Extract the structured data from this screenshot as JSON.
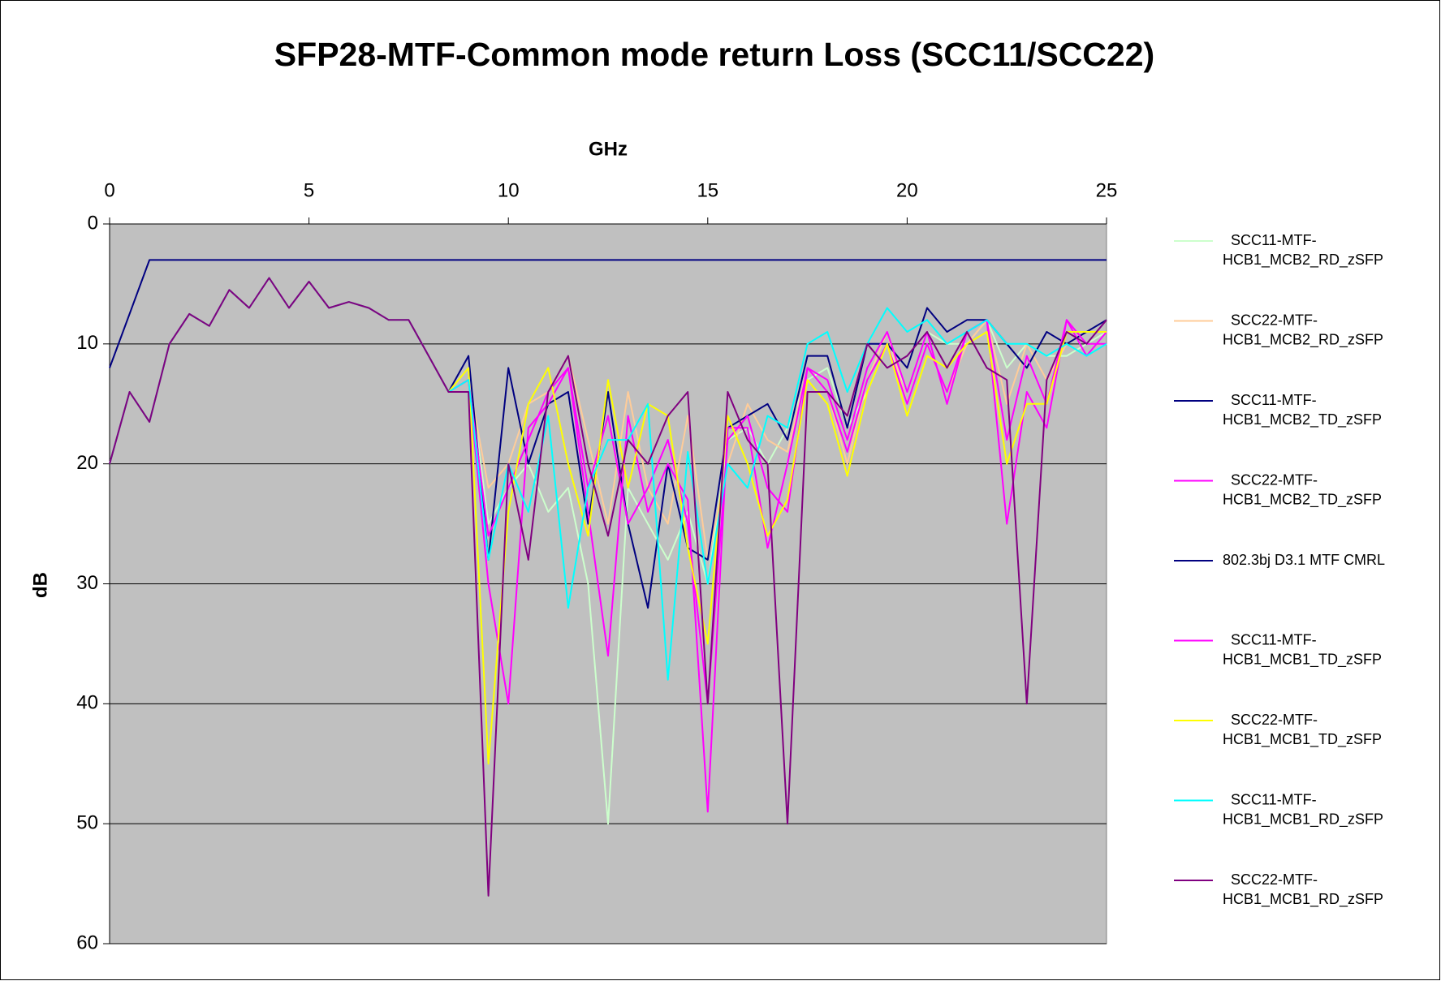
{
  "chart_data": {
    "type": "line",
    "title": "SFP28-MTF-Common mode return Loss (SCC11/SCC22)",
    "x_label": "GHz",
    "y_label": "dB",
    "x": [
      0,
      0.5,
      1,
      1.5,
      2,
      2.5,
      3,
      3.5,
      4,
      4.5,
      5,
      5.5,
      6,
      6.5,
      7,
      7.5,
      8,
      8.5,
      9,
      9.5,
      10,
      10.5,
      11,
      11.5,
      12,
      12.5,
      13,
      13.5,
      14,
      14.5,
      15,
      15.5,
      16,
      16.5,
      17,
      17.5,
      18,
      18.5,
      19,
      19.5,
      20,
      20.5,
      21,
      21.5,
      22,
      22.5,
      23,
      23.5,
      24,
      24.5,
      25
    ],
    "xlim": [
      0,
      25
    ],
    "xticks": [
      0,
      5,
      10,
      15,
      20,
      25
    ],
    "ylim": [
      0,
      60
    ],
    "yticks": [
      0,
      10,
      20,
      30,
      40,
      50,
      60
    ],
    "y_inverted": true,
    "x_axis_position": "top",
    "grid": true,
    "plot_background": "#c0c0c0",
    "legend": "right",
    "series": [
      {
        "name": "SCC11-MTF-HCB1_MCB2_RD_zSFP",
        "color": "#ccffcc",
        "values": [
          20,
          14,
          16.5,
          10,
          7.5,
          8.5,
          5.5,
          7,
          4.5,
          7,
          4.8,
          7,
          6.5,
          7,
          8,
          8,
          11,
          14,
          12,
          25,
          22,
          20,
          24,
          22,
          30,
          50,
          22,
          25,
          28,
          24,
          30,
          18,
          17,
          20,
          17,
          13,
          12,
          17,
          14,
          10,
          14,
          9,
          10,
          10,
          8,
          12,
          10,
          11,
          11,
          10,
          9
        ]
      },
      {
        "name": "SCC22-MTF-HCB1_MCB2_RD_zSFP",
        "color": "#ffcc99",
        "values": [
          20,
          14,
          16.5,
          10,
          7.5,
          8.5,
          5.5,
          7,
          4.5,
          7,
          4.8,
          7,
          6.5,
          7,
          8,
          8,
          11,
          14,
          13,
          22,
          20,
          15,
          14,
          11,
          18,
          25,
          14,
          22,
          25,
          16,
          28,
          20,
          15,
          18,
          19,
          12,
          14,
          20,
          13,
          9,
          15,
          10,
          14,
          10,
          8,
          15,
          10,
          13,
          10,
          9,
          9
        ]
      },
      {
        "name": "SCC11-MTF-HCB1_MCB2_TD_zSFP",
        "color": "#000080",
        "values": [
          20,
          14,
          16.5,
          10,
          7.5,
          8.5,
          5.5,
          7,
          4.5,
          7,
          4.8,
          7,
          6.5,
          7,
          8,
          8,
          11,
          14,
          11,
          28,
          12,
          20,
          15,
          14,
          25,
          14,
          25,
          32,
          20,
          27,
          28,
          17,
          16,
          15,
          18,
          11,
          11,
          17,
          10,
          10,
          12,
          7,
          9,
          8,
          8,
          10,
          12,
          9,
          10,
          9,
          8
        ]
      },
      {
        "name": "SCC22-MTF-HCB1_MCB2_TD_zSFP",
        "color": "#ff00ff",
        "values": [
          20,
          14,
          16.5,
          10,
          7.5,
          8.5,
          5.5,
          7,
          4.5,
          7,
          4.8,
          7,
          6.5,
          7,
          8,
          8,
          11,
          14,
          13,
          26,
          22,
          18,
          14,
          12,
          22,
          16,
          25,
          22,
          18,
          25,
          40,
          18,
          16,
          22,
          24,
          12,
          13,
          18,
          12,
          9,
          14,
          9,
          15,
          9,
          8,
          18,
          11,
          15,
          8,
          10,
          10
        ]
      },
      {
        "name": "802.3bj D3.1 MTF CMRL",
        "color": "#000080",
        "values": [
          12,
          7.5,
          3,
          3,
          3,
          3,
          3,
          3,
          3,
          3,
          3,
          3,
          3,
          3,
          3,
          3,
          3,
          3,
          3,
          3,
          3,
          3,
          3,
          3,
          3,
          3,
          3,
          3,
          3,
          3,
          3,
          3,
          3,
          3,
          3,
          3,
          3,
          3,
          3,
          3,
          3,
          3,
          3,
          3,
          3,
          3,
          3,
          3,
          3,
          3,
          3
        ]
      },
      {
        "name": "SCC11-MTF-HCB1_MCB1_TD_zSFP",
        "color": "#ff00ff",
        "values": [
          20,
          14,
          16.5,
          10,
          7.5,
          8.5,
          5.5,
          7,
          4.5,
          7,
          4.8,
          7,
          6.5,
          7,
          8,
          8,
          11,
          14,
          13,
          30,
          40,
          17,
          15,
          12,
          24,
          36,
          16,
          24,
          20,
          23,
          49,
          17,
          17,
          27,
          20,
          12,
          14,
          19,
          13,
          10,
          15,
          10,
          14,
          9,
          8,
          25,
          14,
          17,
          8,
          11,
          9
        ]
      },
      {
        "name": "SCC22-MTF-HCB1_MCB1_TD_zSFP",
        "color": "#ffff00",
        "values": [
          20,
          14,
          16.5,
          10,
          7.5,
          8.5,
          5.5,
          7,
          4.5,
          7,
          4.8,
          7,
          6.5,
          7,
          8,
          8,
          11,
          14,
          12,
          45,
          24,
          15,
          12,
          20,
          26,
          13,
          22,
          15,
          16,
          27,
          35,
          16,
          20,
          26,
          23,
          13,
          15,
          21,
          14,
          10,
          16,
          11,
          12,
          10,
          9,
          20,
          15,
          15,
          9,
          9,
          9
        ]
      },
      {
        "name": "SCC11-MTF-HCB1_MCB1_RD_zSFP",
        "color": "#00ffff",
        "values": [
          20,
          14,
          16.5,
          10,
          7.5,
          8.5,
          5.5,
          7,
          4.5,
          7,
          4.8,
          7,
          6.5,
          7,
          8,
          8,
          11,
          14,
          13,
          28,
          20,
          24,
          16,
          32,
          22,
          18,
          18,
          15,
          38,
          19,
          30,
          20,
          22,
          16,
          17,
          10,
          9,
          14,
          10,
          7,
          9,
          8,
          10,
          9,
          8,
          10,
          10,
          11,
          10,
          11,
          10
        ]
      },
      {
        "name": "SCC22-MTF-HCB1_MCB1_RD_zSFP",
        "color": "#800080",
        "values": [
          20,
          14,
          16.5,
          10,
          7.5,
          8.5,
          5.5,
          7,
          4.5,
          7,
          4.8,
          7,
          6.5,
          7,
          8,
          8,
          11,
          14,
          14,
          56,
          20,
          28,
          14,
          11,
          20,
          26,
          18,
          20,
          16,
          14,
          40,
          14,
          18,
          20,
          50,
          14,
          14,
          16,
          10,
          12,
          11,
          9,
          12,
          9,
          12,
          13,
          40,
          13,
          9,
          10,
          8
        ]
      }
    ]
  }
}
